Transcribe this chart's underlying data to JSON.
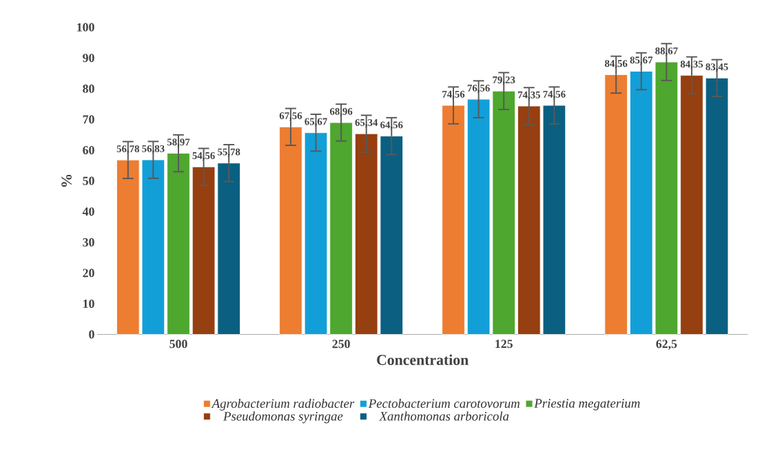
{
  "chart_data": {
    "type": "bar",
    "xlabel": "Concentration",
    "ylabel": "%",
    "categories": [
      "500",
      "250",
      "125",
      "62,5"
    ],
    "ylim": [
      0,
      100
    ],
    "yticks": [
      0,
      10,
      20,
      30,
      40,
      50,
      60,
      70,
      80,
      90,
      100
    ],
    "grid": false,
    "legend": "bottom",
    "data_labels": true,
    "series": [
      {
        "name": "Agrobacterium radiobacter",
        "color": "#ed7d31",
        "values": [
          56.78,
          67.56,
          74.56,
          84.56
        ],
        "errors": [
          6,
          6,
          6,
          6
        ],
        "value_labels": [
          "56,78",
          "67,56",
          "74,56",
          "84,56"
        ]
      },
      {
        "name": "Pectobacterium carotovorum",
        "color": "#129fd8",
        "values": [
          56.83,
          65.67,
          76.56,
          85.67
        ],
        "errors": [
          6,
          6,
          6,
          6
        ],
        "value_labels": [
          "56,83",
          "65,67",
          "76,56",
          "85,67"
        ]
      },
      {
        "name": "Priestia megaterium",
        "color": "#4ea72e",
        "values": [
          58.97,
          68.96,
          79.23,
          88.67
        ],
        "errors": [
          6,
          6,
          6,
          6
        ],
        "value_labels": [
          "58,97",
          "68,96",
          "79,23",
          "88,67"
        ]
      },
      {
        "name": "Pseudomonas syringae",
        "color": "#963f10",
        "values": [
          54.56,
          65.34,
          74.35,
          84.35
        ],
        "errors": [
          6,
          6,
          6,
          6
        ],
        "value_labels": [
          "54,56",
          "65,34",
          "74,35",
          "84,35"
        ]
      },
      {
        "name": "Xanthomonas arboricola",
        "color": "#0b5f80",
        "values": [
          55.78,
          64.56,
          74.56,
          83.45
        ],
        "errors": [
          6,
          6,
          6,
          6
        ],
        "value_labels": [
          "55,78",
          "64,56",
          "74,56",
          "83,45"
        ]
      }
    ]
  }
}
